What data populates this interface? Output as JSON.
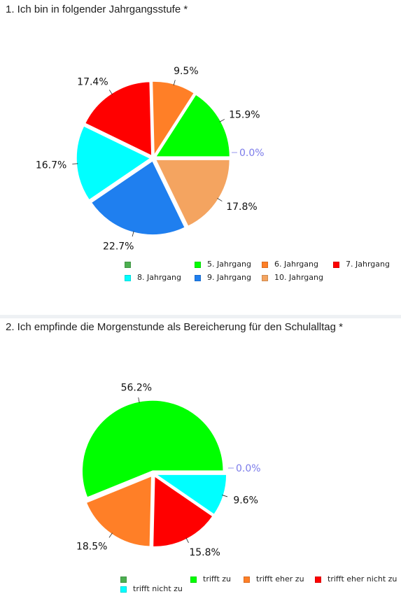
{
  "colors": {
    "blank": "#4caf50",
    "green": "#00ff00",
    "orange": "#ff7f27",
    "red": "#ff0000",
    "cyan": "#00ffff",
    "blue": "#1f7fef",
    "lightorange": "#f4a460",
    "zero_label": "#7b7bea"
  },
  "chart_data": [
    {
      "type": "pie",
      "title": "1. Ich bin in folgender Jahrgangsstufe *",
      "slices": [
        {
          "label": "",
          "value": 0.0,
          "display": "0.0%",
          "color": "#4caf50"
        },
        {
          "label": "5. Jahrgang",
          "value": 15.9,
          "display": "15.9%",
          "color": "#00ff00"
        },
        {
          "label": "6. Jahrgang",
          "value": 9.5,
          "display": "9.5%",
          "color": "#ff7f27"
        },
        {
          "label": "7. Jahrgang",
          "value": 17.4,
          "display": "17.4%",
          "color": "#ff0000"
        },
        {
          "label": "8. Jahrgang",
          "value": 16.7,
          "display": "16.7%",
          "color": "#00ffff"
        },
        {
          "label": "9. Jahrgang",
          "value": 22.7,
          "display": "22.7%",
          "color": "#1f7fef"
        },
        {
          "label": "10. Jahrgang",
          "value": 17.8,
          "display": "17.8%",
          "color": "#f4a460"
        }
      ],
      "legend_position": "bottom"
    },
    {
      "type": "pie",
      "title": "2. Ich empfinde die Morgenstunde als Bereicherung für den Schulalltag *",
      "slices": [
        {
          "label": "",
          "value": 0.0,
          "display": "0.0%",
          "color": "#4caf50"
        },
        {
          "label": "trifft zu",
          "value": 56.2,
          "display": "56.2%",
          "color": "#00ff00"
        },
        {
          "label": "trifft eher zu",
          "value": 18.5,
          "display": "18.5%",
          "color": "#ff7f27"
        },
        {
          "label": "trifft eher nicht zu",
          "value": 15.8,
          "display": "15.8%",
          "color": "#ff0000"
        },
        {
          "label": "trifft nicht zu",
          "value": 9.6,
          "display": "9.6%",
          "color": "#00ffff"
        }
      ],
      "legend_position": "bottom"
    }
  ]
}
